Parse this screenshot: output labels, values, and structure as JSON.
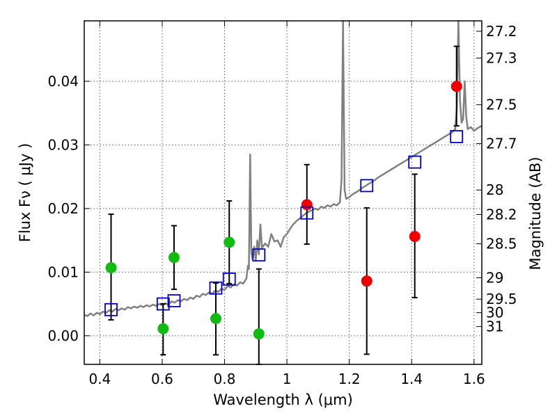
{
  "chart_data": {
    "type": "scatter",
    "xlabel": "Wavelength  λ (μm)",
    "ylabel": "Flux  Fν  ( μJy )",
    "y2label": "Magnitude (AB)",
    "xlim": [
      0.35,
      1.625
    ],
    "ylim": [
      -0.0045,
      0.0495
    ],
    "grid": true,
    "x_ticks": [
      {
        "value": 0.4,
        "label": "0.4"
      },
      {
        "value": 0.6,
        "label": "0.6"
      },
      {
        "value": 0.8,
        "label": "0.8"
      },
      {
        "value": 1.0,
        "label": "1"
      },
      {
        "value": 1.2,
        "label": "1.2"
      },
      {
        "value": 1.4,
        "label": "1.4"
      },
      {
        "value": 1.6,
        "label": "1.6"
      }
    ],
    "y_ticks": [
      {
        "value": 0.0,
        "label": "0.00"
      },
      {
        "value": 0.01,
        "label": "0.01"
      },
      {
        "value": 0.02,
        "label": "0.02"
      },
      {
        "value": 0.03,
        "label": "0.03"
      },
      {
        "value": 0.04,
        "label": "0.04"
      }
    ],
    "y2_ticks": [
      {
        "mag": 27.2,
        "label": "27.2"
      },
      {
        "mag": 27.3,
        "label": "27.3"
      },
      {
        "mag": 27.5,
        "label": "27.5"
      },
      {
        "mag": 27.7,
        "label": "27.7"
      },
      {
        "mag": 28.0,
        "label": "28"
      },
      {
        "mag": 28.2,
        "label": "28.2"
      },
      {
        "mag": 28.5,
        "label": "28.5"
      },
      {
        "mag": 29.0,
        "label": "29"
      },
      {
        "mag": 29.5,
        "label": "29.5"
      },
      {
        "mag": 30.0,
        "label": "30"
      },
      {
        "mag": 31.0,
        "label": "31"
      }
    ],
    "colors": {
      "model_line": "#808080",
      "green": "#11bb11",
      "red": "#ee0000",
      "box": "#0000cc",
      "errorbar": "#000000",
      "grid": "#555555"
    },
    "series": [
      {
        "kind": "line",
        "points": [
          [
            0.35,
            0.0033
          ],
          [
            0.36,
            0.0031
          ],
          [
            0.37,
            0.0035
          ],
          [
            0.38,
            0.0032
          ],
          [
            0.39,
            0.0036
          ],
          [
            0.4,
            0.0034
          ],
          [
            0.41,
            0.0038
          ],
          [
            0.42,
            0.0036
          ],
          [
            0.43,
            0.004
          ],
          [
            0.44,
            0.0038
          ],
          [
            0.45,
            0.0042
          ],
          [
            0.46,
            0.004
          ],
          [
            0.47,
            0.0043
          ],
          [
            0.48,
            0.0041
          ],
          [
            0.49,
            0.0045
          ],
          [
            0.5,
            0.0043
          ],
          [
            0.51,
            0.0046
          ],
          [
            0.52,
            0.0044
          ],
          [
            0.53,
            0.0047
          ],
          [
            0.54,
            0.0045
          ],
          [
            0.55,
            0.0048
          ],
          [
            0.56,
            0.0046
          ],
          [
            0.57,
            0.0049
          ],
          [
            0.58,
            0.0047
          ],
          [
            0.59,
            0.005
          ],
          [
            0.6,
            0.0048
          ],
          [
            0.61,
            0.0051
          ],
          [
            0.62,
            0.0049
          ],
          [
            0.63,
            0.0054
          ],
          [
            0.64,
            0.0052
          ],
          [
            0.65,
            0.0056
          ],
          [
            0.66,
            0.0054
          ],
          [
            0.67,
            0.0058
          ],
          [
            0.68,
            0.0056
          ],
          [
            0.69,
            0.006
          ],
          [
            0.7,
            0.0058
          ],
          [
            0.71,
            0.0063
          ],
          [
            0.72,
            0.0061
          ],
          [
            0.73,
            0.0066
          ],
          [
            0.74,
            0.0064
          ],
          [
            0.75,
            0.0068
          ],
          [
            0.76,
            0.0066
          ],
          [
            0.77,
            0.0071
          ],
          [
            0.78,
            0.0069
          ],
          [
            0.79,
            0.0074
          ],
          [
            0.8,
            0.0072
          ],
          [
            0.81,
            0.0078
          ],
          [
            0.82,
            0.0076
          ],
          [
            0.83,
            0.0081
          ],
          [
            0.84,
            0.0079
          ],
          [
            0.85,
            0.0084
          ],
          [
            0.86,
            0.0082
          ],
          [
            0.87,
            0.009
          ],
          [
            0.875,
            0.011
          ],
          [
            0.878,
            0.0105
          ],
          [
            0.882,
            0.0285
          ],
          [
            0.886,
            0.013
          ],
          [
            0.89,
            0.012
          ],
          [
            0.895,
            0.014
          ],
          [
            0.9,
            0.0118
          ],
          [
            0.905,
            0.015
          ],
          [
            0.91,
            0.0128
          ],
          [
            0.915,
            0.0175
          ],
          [
            0.92,
            0.0138
          ],
          [
            0.93,
            0.0145
          ],
          [
            0.94,
            0.014
          ],
          [
            0.95,
            0.016
          ],
          [
            0.96,
            0.0148
          ],
          [
            0.97,
            0.015
          ],
          [
            0.98,
            0.014
          ],
          [
            0.99,
            0.0155
          ],
          [
            1.0,
            0.016
          ],
          [
            1.01,
            0.0168
          ],
          [
            1.02,
            0.0175
          ],
          [
            1.03,
            0.018
          ],
          [
            1.04,
            0.0184
          ],
          [
            1.05,
            0.0188
          ],
          [
            1.06,
            0.0192
          ],
          [
            1.07,
            0.0195
          ],
          [
            1.08,
            0.0197
          ],
          [
            1.09,
            0.02
          ],
          [
            1.1,
            0.0198
          ],
          [
            1.11,
            0.0203
          ],
          [
            1.12,
            0.0201
          ],
          [
            1.13,
            0.0205
          ],
          [
            1.14,
            0.0203
          ],
          [
            1.15,
            0.0207
          ],
          [
            1.16,
            0.0205
          ],
          [
            1.17,
            0.021
          ],
          [
            1.175,
            0.0245
          ],
          [
            1.18,
            0.0495
          ],
          [
            1.185,
            0.023
          ],
          [
            1.19,
            0.0215
          ],
          [
            1.2,
            0.0218
          ],
          [
            1.21,
            0.0222
          ],
          [
            1.22,
            0.0225
          ],
          [
            1.23,
            0.0228
          ],
          [
            1.24,
            0.0232
          ],
          [
            1.25,
            0.0235
          ],
          [
            1.26,
            0.0238
          ],
          [
            1.27,
            0.0241
          ],
          [
            1.28,
            0.0244
          ],
          [
            1.29,
            0.0248
          ],
          [
            1.3,
            0.0251
          ],
          [
            1.31,
            0.0254
          ],
          [
            1.32,
            0.0257
          ],
          [
            1.33,
            0.026
          ],
          [
            1.34,
            0.0263
          ],
          [
            1.35,
            0.0266
          ],
          [
            1.36,
            0.0269
          ],
          [
            1.37,
            0.0272
          ],
          [
            1.38,
            0.0275
          ],
          [
            1.39,
            0.0278
          ],
          [
            1.4,
            0.0281
          ],
          [
            1.41,
            0.0284
          ],
          [
            1.42,
            0.0287
          ],
          [
            1.43,
            0.029
          ],
          [
            1.44,
            0.0293
          ],
          [
            1.45,
            0.0296
          ],
          [
            1.46,
            0.0299
          ],
          [
            1.47,
            0.0302
          ],
          [
            1.48,
            0.0305
          ],
          [
            1.49,
            0.0308
          ],
          [
            1.5,
            0.0311
          ],
          [
            1.51,
            0.0314
          ],
          [
            1.52,
            0.0317
          ],
          [
            1.53,
            0.032
          ],
          [
            1.54,
            0.0325
          ],
          [
            1.545,
            0.036
          ],
          [
            1.55,
            0.0495
          ],
          [
            1.555,
            0.037
          ],
          [
            1.56,
            0.0335
          ],
          [
            1.565,
            0.034
          ],
          [
            1.57,
            0.04
          ],
          [
            1.575,
            0.0345
          ],
          [
            1.58,
            0.0325
          ],
          [
            1.59,
            0.0328
          ],
          [
            1.6,
            0.0322
          ],
          [
            1.61,
            0.0326
          ],
          [
            1.625,
            0.033
          ]
        ]
      },
      {
        "kind": "points",
        "marker": "circle",
        "color_key": "green",
        "points": [
          {
            "x": 0.436,
            "y": 0.0107
          },
          {
            "x": 0.603,
            "y": 0.0011
          },
          {
            "x": 0.638,
            "y": 0.0123
          },
          {
            "x": 0.772,
            "y": 0.0027
          },
          {
            "x": 0.815,
            "y": 0.0147
          },
          {
            "x": 0.91,
            "y": 0.0003
          }
        ]
      },
      {
        "kind": "points",
        "marker": "circle",
        "color_key": "red",
        "points": [
          {
            "x": 1.064,
            "y": 0.0206
          },
          {
            "x": 1.256,
            "y": 0.0086
          },
          {
            "x": 1.41,
            "y": 0.0156
          },
          {
            "x": 1.544,
            "y": 0.0392
          }
        ]
      },
      {
        "kind": "errorbars",
        "bars": [
          {
            "x": 0.436,
            "low": 0.0025,
            "high": 0.0191
          },
          {
            "x": 0.603,
            "low": -0.003,
            "high": 0.005
          },
          {
            "x": 0.638,
            "low": 0.0073,
            "high": 0.0173
          },
          {
            "x": 0.772,
            "low": -0.003,
            "high": 0.0083
          },
          {
            "x": 0.815,
            "low": 0.0082,
            "high": 0.0212
          },
          {
            "x": 0.91,
            "low": -0.0045,
            "high": 0.0105
          },
          {
            "x": 1.064,
            "low": 0.0144,
            "high": 0.0269
          },
          {
            "x": 1.256,
            "low": -0.0029,
            "high": 0.0201
          },
          {
            "x": 1.41,
            "low": 0.006,
            "high": 0.0254
          },
          {
            "x": 1.544,
            "low": 0.033,
            "high": 0.0455
          }
        ]
      },
      {
        "kind": "points",
        "marker": "square",
        "color_key": "box",
        "points": [
          {
            "x": 0.436,
            "y": 0.0041
          },
          {
            "x": 0.603,
            "y": 0.005
          },
          {
            "x": 0.638,
            "y": 0.0055
          },
          {
            "x": 0.772,
            "y": 0.0075
          },
          {
            "x": 0.815,
            "y": 0.0089
          },
          {
            "x": 0.91,
            "y": 0.0127
          },
          {
            "x": 1.064,
            "y": 0.0193
          },
          {
            "x": 1.256,
            "y": 0.0236
          },
          {
            "x": 1.41,
            "y": 0.0273
          },
          {
            "x": 1.544,
            "y": 0.0313
          }
        ]
      }
    ]
  }
}
